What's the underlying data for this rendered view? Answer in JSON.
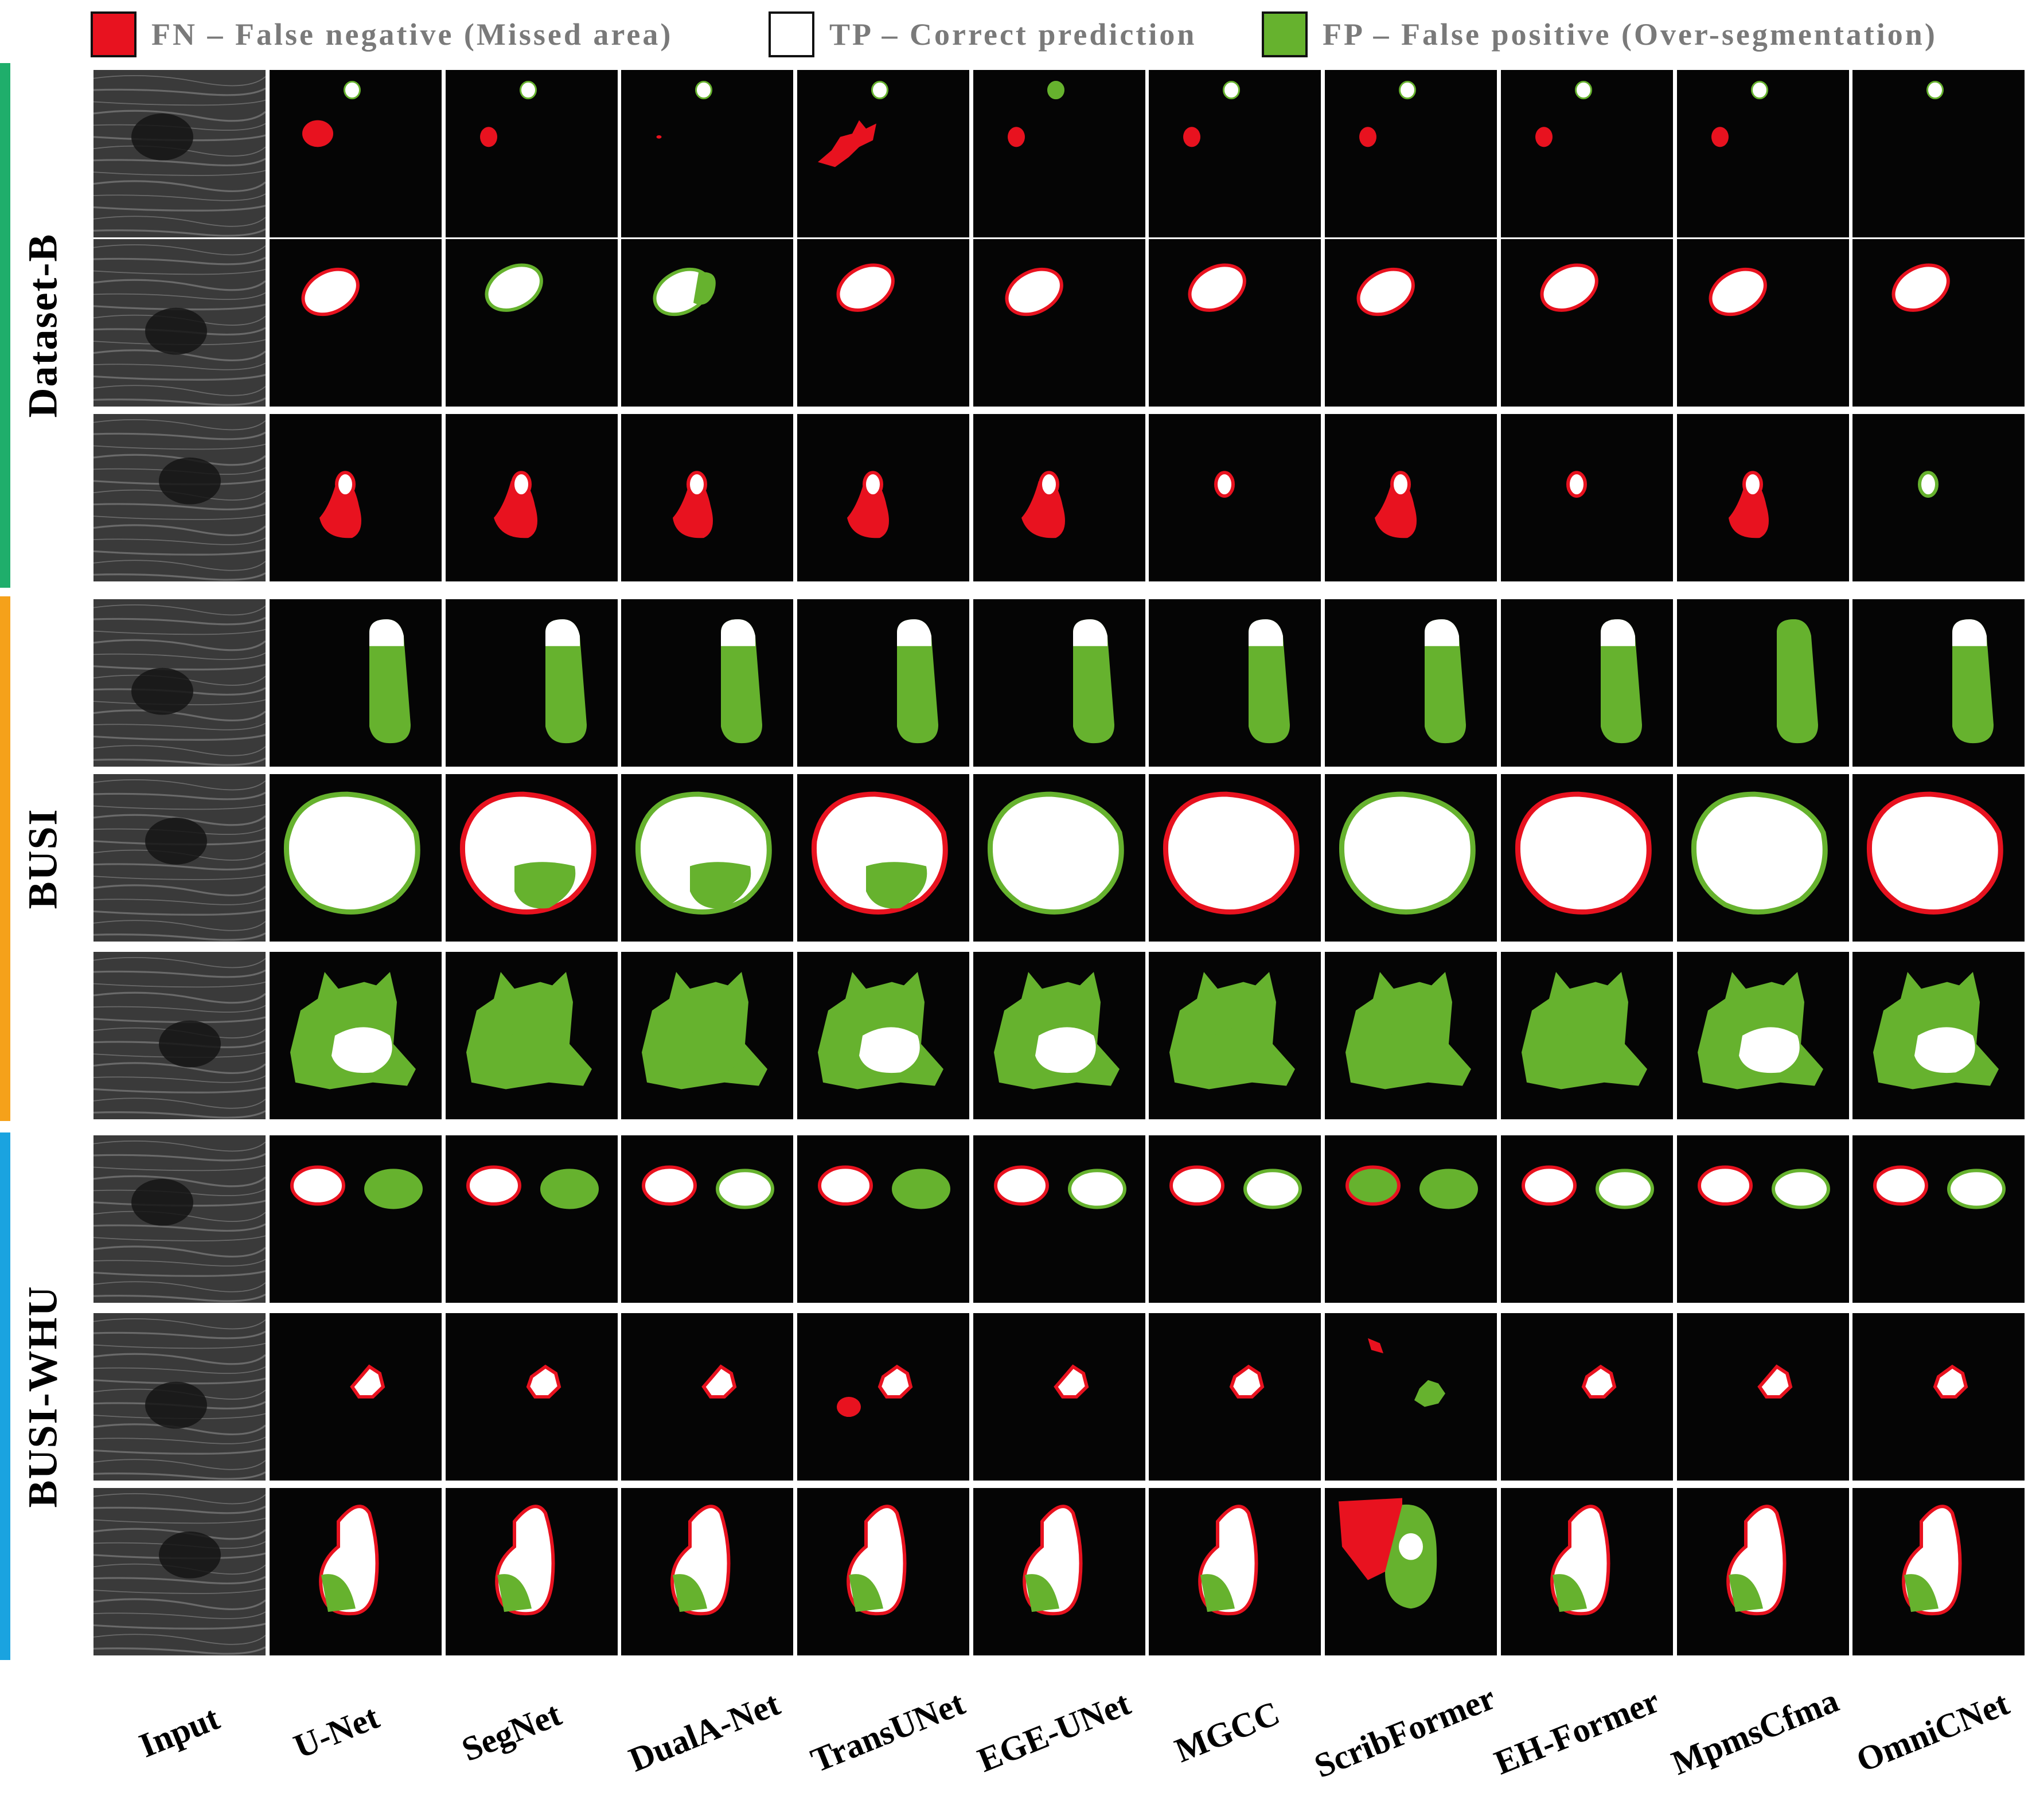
{
  "legend": [
    {
      "label": "FN – False negative (Missed area)",
      "color": "#e8121f"
    },
    {
      "label": "TP – Correct prediction",
      "color": "#ffffff"
    },
    {
      "label": "FP – False positive (Over-segmentation)",
      "color": "#66b22e"
    }
  ],
  "datasets": [
    {
      "name": "Dataset-B",
      "color": "#1fae6b"
    },
    {
      "name": "BUSI",
      "color": "#f5a11a"
    },
    {
      "name": "BUSI-WHU",
      "color": "#1aa3e0"
    }
  ],
  "columns": [
    "Input",
    "U-Net",
    "SegNet",
    "DualA-Net",
    "TransUNet",
    "EGE-UNet",
    "MGCC",
    "ScribFormer",
    "EH-Former",
    "MpmsCfma",
    "OmniCNet"
  ],
  "colors": {
    "fn": "#e8121f",
    "tp": "#ffffff",
    "fp": "#66b22e",
    "background": "#050505",
    "ultrasound": "#3a3a3a"
  }
}
